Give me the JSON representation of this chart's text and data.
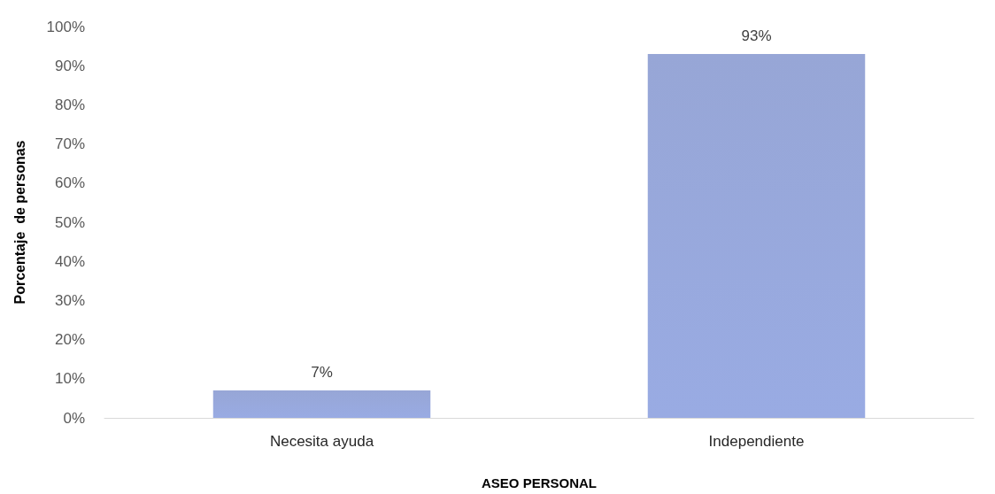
{
  "chart_data": {
    "type": "bar",
    "xlabel": "ASEO PERSONAL",
    "ylabel": "Porcentaje  de personas",
    "categories": [
      "Necesita ayuda",
      "Independiente"
    ],
    "values": [
      7,
      93
    ],
    "color": "#8e9fd3",
    "value_labels": [
      "7%",
      "93%"
    ],
    "ylim": [
      0,
      100
    ],
    "yticks": [
      {
        "value": 0,
        "label": "0%"
      },
      {
        "value": 10,
        "label": "10%"
      },
      {
        "value": 20,
        "label": "20%"
      },
      {
        "value": 30,
        "label": "30%"
      },
      {
        "value": 40,
        "label": "40%"
      },
      {
        "value": 50,
        "label": "50%"
      },
      {
        "value": 60,
        "label": "60%"
      },
      {
        "value": 70,
        "label": "70%"
      },
      {
        "value": 80,
        "label": "80%"
      },
      {
        "value": 90,
        "label": "90%"
      },
      {
        "value": 100,
        "label": "100%"
      }
    ],
    "grid": false
  }
}
